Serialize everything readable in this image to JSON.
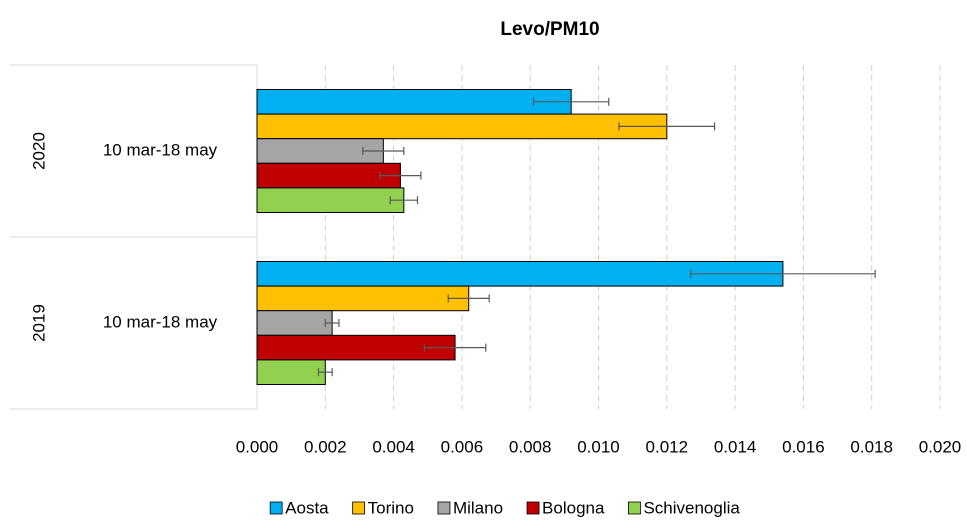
{
  "chart_data": {
    "type": "bar",
    "orientation": "horizontal",
    "title": "Levo/PM10",
    "groups": [
      "2020",
      "2019"
    ],
    "categories": [
      "10 mar-18 may",
      "10 mar-18 may"
    ],
    "series": [
      {
        "name": "Aosta",
        "color": "#00b0f0",
        "values": [
          0.0092,
          0.0154
        ],
        "errors": [
          0.0011,
          0.0027
        ]
      },
      {
        "name": "Torino",
        "color": "#ffc000",
        "values": [
          0.012,
          0.0062
        ],
        "errors": [
          0.0014,
          0.0006
        ]
      },
      {
        "name": "Milano",
        "color": "#a5a5a5",
        "values": [
          0.0037,
          0.0022
        ],
        "errors": [
          0.0006,
          0.0002
        ]
      },
      {
        "name": "Bologna",
        "color": "#c00000",
        "values": [
          0.0042,
          0.0058
        ],
        "errors": [
          0.0006,
          0.0009
        ]
      },
      {
        "name": "Schivenoglia",
        "color": "#92d050",
        "values": [
          0.0043,
          0.002
        ],
        "errors": [
          0.0004,
          0.0002
        ]
      }
    ],
    "xlim": [
      0,
      0.02
    ],
    "xticks": [
      {
        "value": 0,
        "label": "0.000"
      },
      {
        "value": 0.002,
        "label": "0.002"
      },
      {
        "value": 0.004,
        "label": "0.004"
      },
      {
        "value": 0.006,
        "label": "0.006"
      },
      {
        "value": 0.008,
        "label": "0.008"
      },
      {
        "value": 0.01,
        "label": "0.010"
      },
      {
        "value": 0.012,
        "label": "0.012"
      },
      {
        "value": 0.014,
        "label": "0.014"
      },
      {
        "value": 0.016,
        "label": "0.016"
      },
      {
        "value": 0.018,
        "label": "0.018"
      },
      {
        "value": 0.02,
        "label": "0.020"
      }
    ],
    "grid": true,
    "legend": "bottom"
  }
}
